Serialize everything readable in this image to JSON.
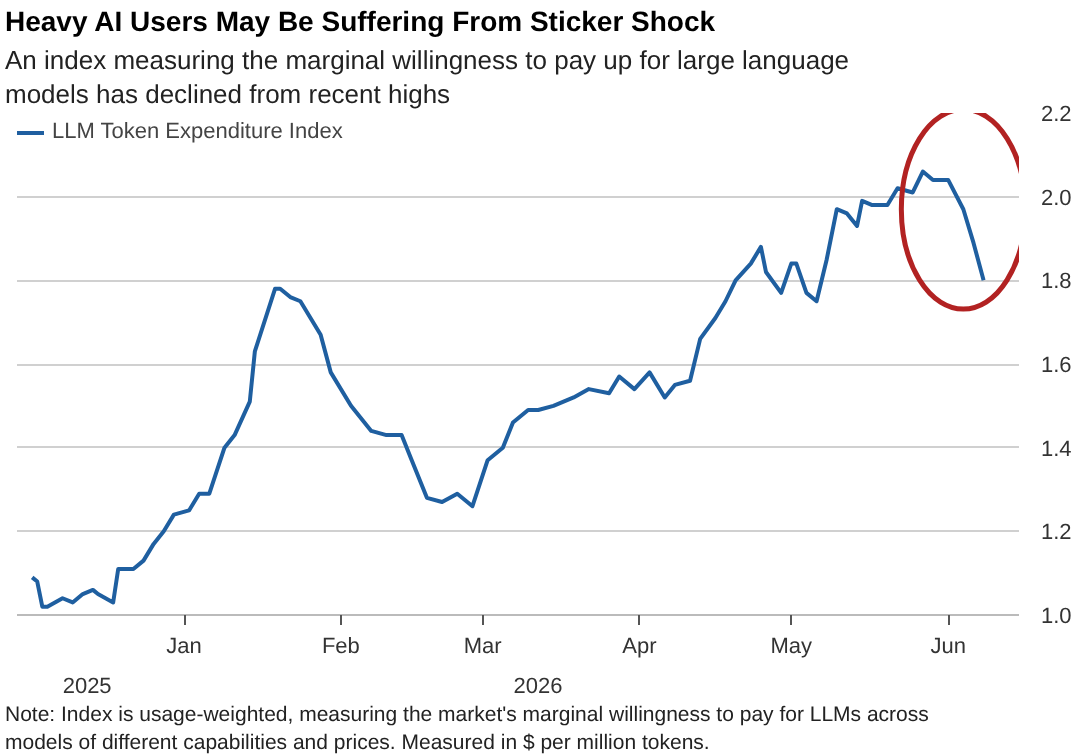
{
  "chart_data": {
    "type": "line",
    "title": "Heavy AI Users May Be Suffering From Sticker Shock",
    "subtitle": "An index measuring the marginal willingness to pay up for large language models has declined from recent highs",
    "annotations": [
      "2025",
      "2026",
      "Note: Index is usage-weighted, measuring the market's marginal willingness to pay for LLMs across models of different capabilities and prices. Measured in $ per million tokens."
    ],
    "x": [
      "2025-12-02",
      "2025-12-03",
      "2025-12-04",
      "2025-12-05",
      "2025-12-08",
      "2025-12-10",
      "2025-12-12",
      "2025-12-14",
      "2025-12-15",
      "2025-12-18",
      "2025-12-19",
      "2025-12-22",
      "2025-12-24",
      "2025-12-26",
      "2025-12-28",
      "2025-12-30",
      "2026-01-02",
      "2026-01-04",
      "2026-01-06",
      "2026-01-09",
      "2026-01-11",
      "2026-01-14",
      "2026-01-15",
      "2026-01-19",
      "2026-01-20",
      "2026-01-22",
      "2026-01-24",
      "2026-01-26",
      "2026-01-28",
      "2026-01-30",
      "2026-02-03",
      "2026-02-07",
      "2026-02-10",
      "2026-02-13",
      "2026-02-15",
      "2026-02-18",
      "2026-02-21",
      "2026-02-24",
      "2026-02-27",
      "2026-03-02",
      "2026-03-05",
      "2026-03-07",
      "2026-03-10",
      "2026-03-12",
      "2026-03-15",
      "2026-03-19",
      "2026-03-22",
      "2026-03-26",
      "2026-03-28",
      "2026-03-31",
      "2026-04-03",
      "2026-04-06",
      "2026-04-08",
      "2026-04-11",
      "2026-04-13",
      "2026-04-16",
      "2026-04-18",
      "2026-04-20",
      "2026-04-23",
      "2026-04-25",
      "2026-04-26",
      "2026-04-29",
      "2026-05-01",
      "2026-05-02",
      "2026-05-04",
      "2026-05-06",
      "2026-05-08",
      "2026-05-10",
      "2026-05-12",
      "2026-05-14",
      "2026-05-15",
      "2026-05-17",
      "2026-05-20",
      "2026-05-22",
      "2026-05-25",
      "2026-05-27",
      "2026-05-29",
      "2026-06-01",
      "2026-06-04",
      "2026-06-06",
      "2026-06-08"
    ],
    "series": [
      {
        "name": "LLM Token Expenditure Index",
        "color": "#1f5fa0",
        "values": [
          1.09,
          1.08,
          1.02,
          1.02,
          1.04,
          1.03,
          1.05,
          1.06,
          1.05,
          1.03,
          1.11,
          1.11,
          1.13,
          1.17,
          1.2,
          1.24,
          1.25,
          1.29,
          1.29,
          1.4,
          1.43,
          1.51,
          1.63,
          1.78,
          1.78,
          1.76,
          1.75,
          1.71,
          1.67,
          1.58,
          1.5,
          1.44,
          1.43,
          1.43,
          1.37,
          1.28,
          1.27,
          1.29,
          1.26,
          1.37,
          1.4,
          1.46,
          1.49,
          1.49,
          1.5,
          1.52,
          1.54,
          1.53,
          1.57,
          1.54,
          1.58,
          1.52,
          1.55,
          1.56,
          1.66,
          1.71,
          1.75,
          1.8,
          1.84,
          1.88,
          1.82,
          1.77,
          1.84,
          1.84,
          1.77,
          1.75,
          1.85,
          1.97,
          1.96,
          1.93,
          1.99,
          1.98,
          1.98,
          2.02,
          2.01,
          2.06,
          2.04,
          2.04,
          1.97,
          1.89,
          1.8
        ]
      }
    ],
    "xlim": [
      "2025-11-29",
      "2026-06-15"
    ],
    "xticks": [
      {
        "value": "2026-01-01",
        "label": "Jan"
      },
      {
        "value": "2026-02-01",
        "label": "Feb"
      },
      {
        "value": "2026-03-01",
        "label": "Mar"
      },
      {
        "value": "2026-04-01",
        "label": "Apr"
      },
      {
        "value": "2026-05-01",
        "label": "May"
      },
      {
        "value": "2026-06-01",
        "label": "Jun"
      }
    ],
    "ylim": [
      1.0,
      2.2
    ],
    "yticks": [
      {
        "value": 1.0,
        "label": "1.0"
      },
      1.2,
      1.4,
      1.6,
      1.8,
      {
        "value": 2.0,
        "label": "2.0"
      },
      2.2
    ],
    "grid": "y",
    "legend": "top left",
    "marker": "none",
    "line_style": "solid"
  }
}
